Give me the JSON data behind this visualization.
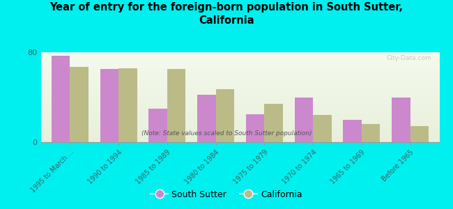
{
  "title": "Year of entry for the foreign-born population in South Sutter,\nCalifornia",
  "subtitle": "(Note: State values scaled to South Sutter population)",
  "categories": [
    "1995 to March ...",
    "1990 to 1994",
    "1985 to 1989",
    "1980 to 1984",
    "1975 to 1979",
    "1970 to 1974",
    "1965 to 1969",
    "Before 1965"
  ],
  "south_sutter_values": [
    77,
    65,
    30,
    42,
    25,
    40,
    20,
    40
  ],
  "california_values": [
    67,
    66,
    65,
    47,
    34,
    24,
    16,
    14
  ],
  "south_sutter_color": "#CC88CC",
  "california_color": "#BBBB88",
  "background_color": "#00EFEF",
  "ylim": [
    0,
    80
  ],
  "yticks": [
    0,
    80
  ],
  "bar_width": 0.38,
  "watermark": "City-Data.com",
  "tick_color": "#336666",
  "legend_ss": "South Sutter",
  "legend_ca": "California"
}
